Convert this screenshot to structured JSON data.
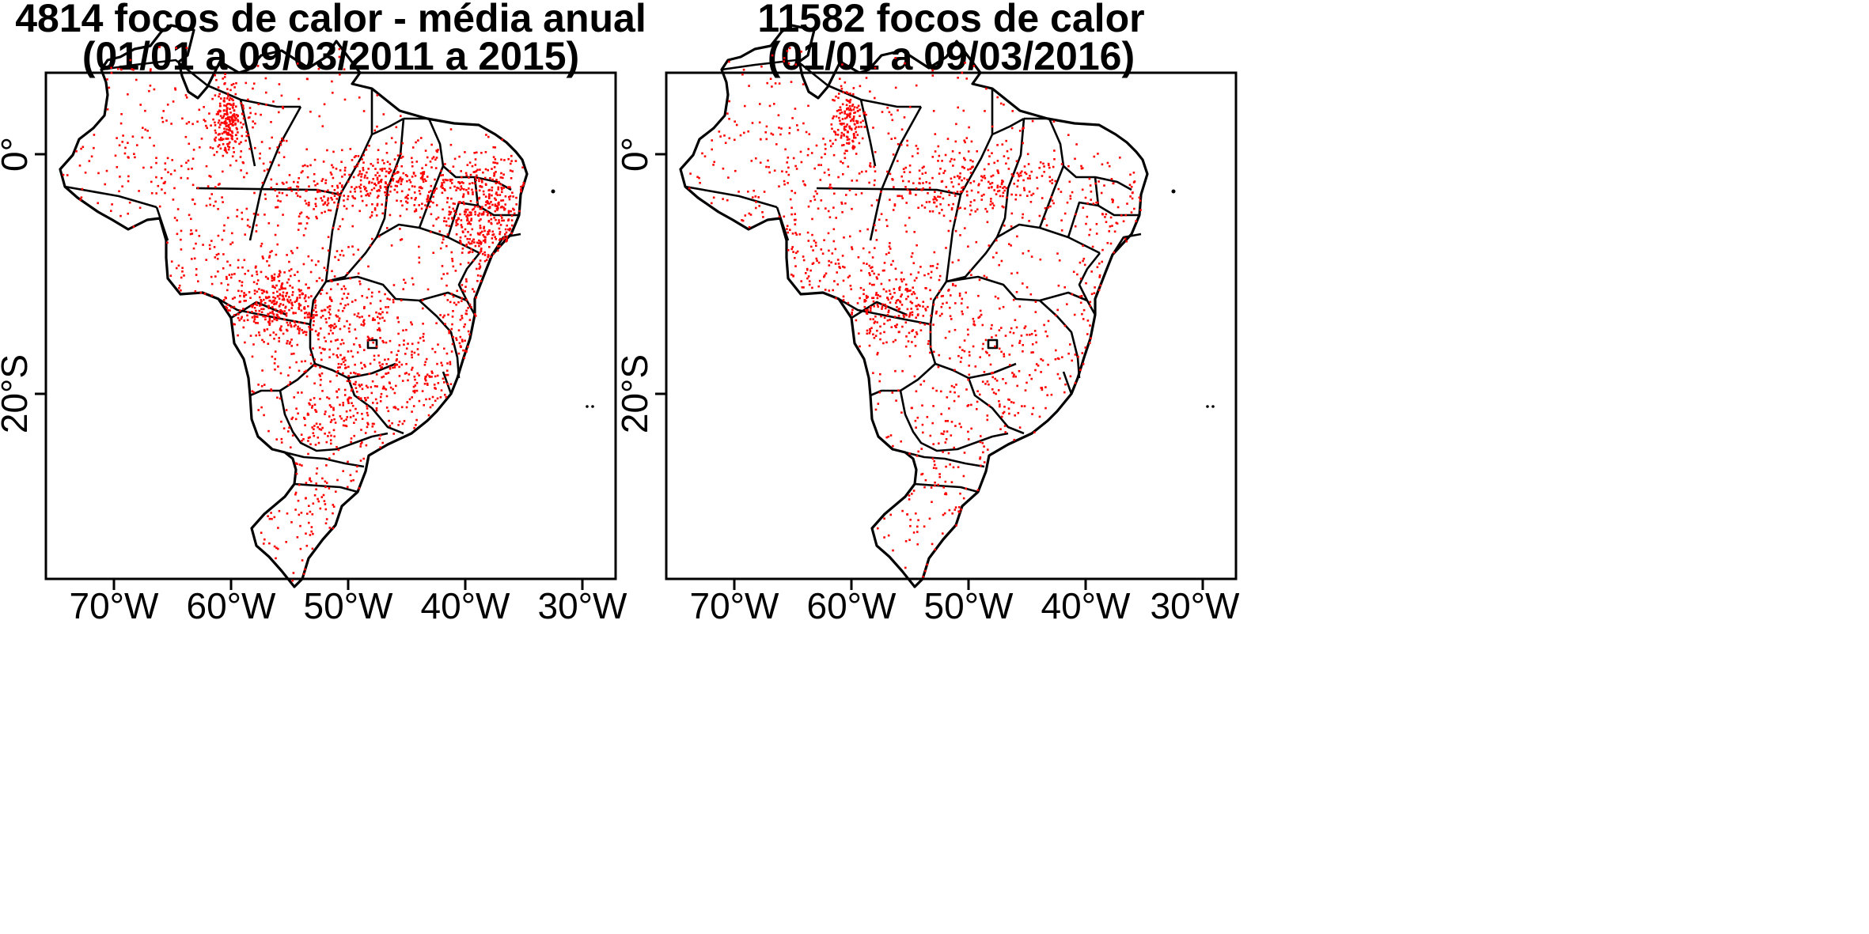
{
  "panels": [
    {
      "title_line1": "4814 focos de calor - média anual",
      "title_line2": "(01/01 a 09/03/2011 a 2015)",
      "hotspot_count": 4814
    },
    {
      "title_line1": "11582 focos de calor",
      "title_line2": "(01/01 a 09/03/2016)",
      "hotspot_count": 11582
    }
  ],
  "axes": {
    "x_ticks": [
      "70°W",
      "60°W",
      "50°W",
      "40°W",
      "30°W"
    ],
    "y_ticks": [
      "0°",
      "20°S"
    ]
  },
  "colors": {
    "hotspot": "#ff0000",
    "border": "#000000",
    "background": "#ffffff"
  }
}
